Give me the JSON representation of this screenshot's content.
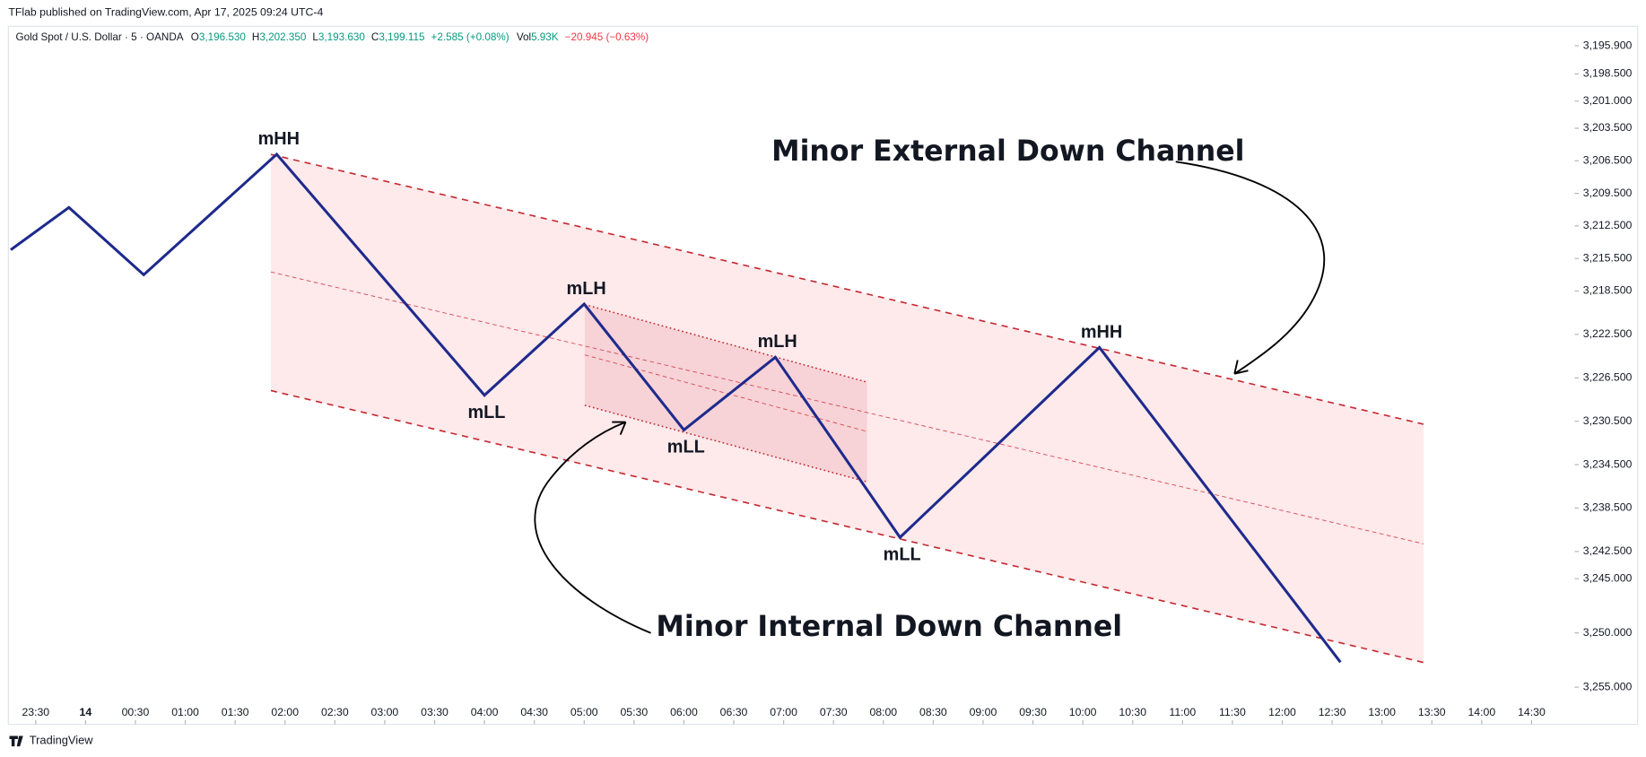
{
  "header": {
    "publisher": "TFlab published on TradingView.com, Apr 17, 2025 09:24 UTC-4",
    "brand": "TradingView"
  },
  "chart_data": {
    "type": "line",
    "symbol": "Gold Spot / U.S. Dollar · 5 · OANDA",
    "quote": [
      {
        "key": "O",
        "value": "3,196.530"
      },
      {
        "key": "H",
        "value": "3,202.350"
      },
      {
        "key": "L",
        "value": "3,193.630"
      },
      {
        "key": "C",
        "value": "3,199.115"
      }
    ],
    "change": "+2.585 (+0.08%)",
    "volume": {
      "key": "Vol",
      "value": "5.93K"
    },
    "volume_change": "−20.945 (−0.63%)",
    "x": [
      "23:15",
      "23:50",
      "00:35",
      "01:55",
      "04:00",
      "05:00",
      "06:00",
      "06:55",
      "08:10",
      "10:10",
      "12:35"
    ],
    "values": [
      3214.7,
      3210.8,
      3217.0,
      3205.9,
      3228.1,
      3219.7,
      3231.3,
      3224.6,
      3241.2,
      3223.7,
      3252.7
    ],
    "point_labels": [
      null,
      null,
      null,
      "mHH",
      "mLL",
      "mLH",
      "mLL",
      "mLH",
      "mLL",
      "mHH",
      null
    ],
    "color": "#1e2a8c",
    "annotations": [
      "Minor External Down Channel",
      "Minor Internal Down Channel"
    ],
    "ylim": [
      3194.4,
      3256.3
    ],
    "inverted": true,
    "yticks": [
      {
        "value": 3195.9,
        "label": "3,195.900"
      },
      {
        "value": 3198.5,
        "label": "3,198.500"
      },
      {
        "value": 3201.0,
        "label": "3,201.000"
      },
      {
        "value": 3203.5,
        "label": "3,203.500"
      },
      {
        "value": 3206.5,
        "label": "3,206.500"
      },
      {
        "value": 3209.5,
        "label": "3,209.500"
      },
      {
        "value": 3212.5,
        "label": "3,212.500"
      },
      {
        "value": 3215.5,
        "label": "3,215.500"
      },
      {
        "value": 3218.5,
        "label": "3,218.500"
      },
      {
        "value": 3222.5,
        "label": "3,222.500"
      },
      {
        "value": 3226.5,
        "label": "3,226.500"
      },
      {
        "value": 3230.5,
        "label": "3,230.500"
      },
      {
        "value": 3234.5,
        "label": "3,234.500"
      },
      {
        "value": 3238.5,
        "label": "3,238.500"
      },
      {
        "value": 3242.5,
        "label": "3,242.500"
      },
      {
        "value": 3245.0,
        "label": "3,245.000"
      },
      {
        "value": 3250.0,
        "label": "3,250.000"
      },
      {
        "value": 3255.0,
        "label": "3,255.000"
      }
    ],
    "xticks": [
      "23:30",
      {
        "value": "00:00",
        "label": "14"
      },
      "00:30",
      "01:00",
      "01:30",
      "02:00",
      "02:30",
      "03:00",
      "03:30",
      "04:00",
      "04:30",
      "05:00",
      "05:30",
      "06:00",
      "06:30",
      "07:00",
      "07:30",
      "08:00",
      "08:30",
      "09:00",
      "09:30",
      "10:00",
      "10:30",
      "11:00",
      "11:30",
      "12:00",
      "12:30",
      "13:00",
      "13:30",
      "14:00",
      "14:30"
    ]
  }
}
